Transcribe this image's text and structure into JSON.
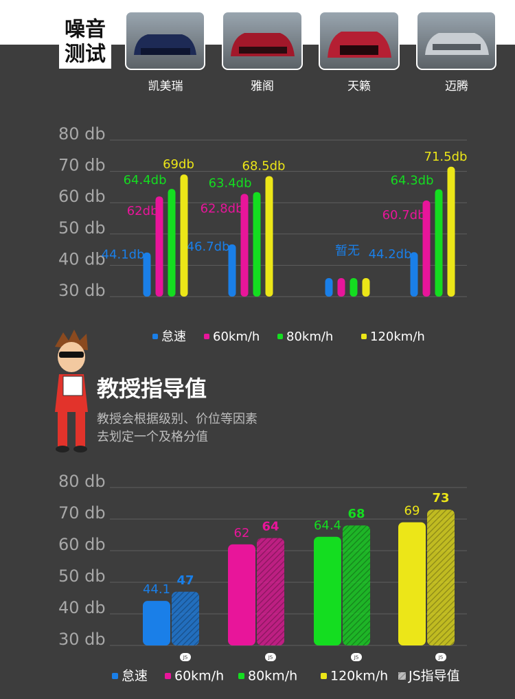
{
  "header": {
    "label_lines": [
      "噪音",
      "测试"
    ]
  },
  "chart_data": [
    {
      "type": "bar",
      "categories": [
        "凯美瑞",
        "雅阁",
        "天籁",
        "迈腾"
      ],
      "series": [
        {
          "name": "怠速",
          "color": "#1a7fe8",
          "values": [
            44.1,
            46.7,
            null,
            44.2
          ],
          "value_labels": [
            "44.1db",
            "46.7db",
            null,
            "44.2db"
          ]
        },
        {
          "name": "60km/h",
          "color": "#e8159a",
          "values": [
            62,
            62.8,
            null,
            60.7
          ],
          "value_labels": [
            "62db",
            "62.8db",
            null,
            "60.7db"
          ]
        },
        {
          "name": "80km/h",
          "color": "#14dd20",
          "values": [
            64.4,
            63.4,
            null,
            64.3
          ],
          "value_labels": [
            "64.4db",
            "63.4db",
            null,
            "64.3db"
          ]
        },
        {
          "name": "120km/h",
          "color": "#ece618",
          "values": [
            69,
            68.5,
            null,
            71.5
          ],
          "value_labels": [
            "69db",
            "68.5db",
            null,
            "71.5db"
          ]
        }
      ],
      "annotation": "暂无",
      "ylim": [
        30,
        80
      ],
      "yticks": [
        {
          "value": 30,
          "label": "30 db"
        },
        {
          "value": 40,
          "label": "40 db"
        },
        {
          "value": 50,
          "label": "50 db"
        },
        {
          "value": 60,
          "label": "60 db"
        },
        {
          "value": 70,
          "label": "70 db"
        },
        {
          "value": 80,
          "label": "80 db"
        }
      ],
      "grid": true
    },
    {
      "type": "bar",
      "categories": [
        "怠速",
        "60km/h",
        "80km/h",
        "120km/h"
      ],
      "colors": [
        "#1a7fe8",
        "#e8159a",
        "#14dd20",
        "#ece618"
      ],
      "series": [
        {
          "values": [
            44.1,
            62,
            64.4,
            69
          ]
        },
        {
          "name": "JS指导值",
          "values": [
            47,
            64,
            68,
            73
          ],
          "pattern": "hatch"
        }
      ],
      "badge": "JS",
      "ylim": [
        30,
        80
      ],
      "yticks": [
        {
          "value": 30,
          "label": "30 db"
        },
        {
          "value": 40,
          "label": "40 db"
        },
        {
          "value": 50,
          "label": "50 db"
        },
        {
          "value": 60,
          "label": "60 db"
        },
        {
          "value": 70,
          "label": "70 db"
        },
        {
          "value": 80,
          "label": "80 db"
        }
      ],
      "grid": true
    }
  ],
  "professor": {
    "title": "教授指导值",
    "description_lines": [
      "教授会根据级别、价位等因素",
      "去划定一个及格分值"
    ]
  }
}
